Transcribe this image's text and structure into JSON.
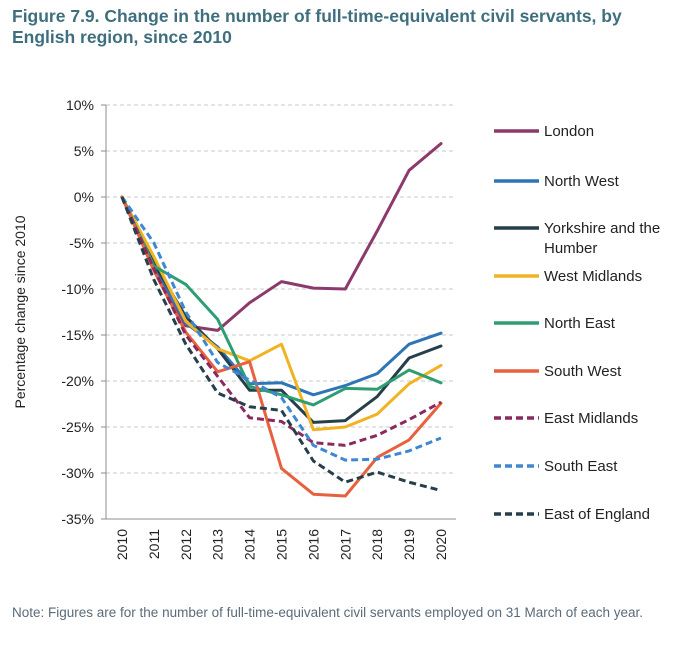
{
  "figure": {
    "title": "Figure 7.9. Change in the number of full-time-equivalent civil servants, by English region, since 2010",
    "note": "Note: Figures are for the number of full-time-equivalent civil servants employed on 31 March of each year."
  },
  "chart_data": {
    "type": "line",
    "title": "",
    "xlabel": "",
    "ylabel": "Percentage change since 2010",
    "x": [
      "2010",
      "2011",
      "2012",
      "2013",
      "2014",
      "2015",
      "2016",
      "2017",
      "2018",
      "2019",
      "2020"
    ],
    "ylim": [
      -35,
      10
    ],
    "yticks": [
      10,
      5,
      0,
      -5,
      -10,
      -15,
      -20,
      -25,
      -30,
      -35
    ],
    "ytick_labels": [
      "10%",
      "5%",
      "0%",
      "-5%",
      "-10%",
      "-15%",
      "-20%",
      "-25%",
      "-30%",
      "-35%"
    ],
    "grid": "horizontal dashed",
    "legend_position": "right",
    "series": [
      {
        "name": "London",
        "name_lines": [
          "London"
        ],
        "color": "#8b3a6b",
        "dashed": false,
        "values": [
          0,
          -7.5,
          -14.0,
          -14.5,
          -11.5,
          -9.2,
          -9.9,
          -10.0,
          -3.7,
          2.9,
          5.8
        ]
      },
      {
        "name": "North West",
        "name_lines": [
          "North West"
        ],
        "color": "#2e75b6",
        "dashed": false,
        "values": [
          0,
          -7.5,
          -13.7,
          -16.3,
          -20.3,
          -20.2,
          -21.5,
          -20.5,
          -19.2,
          -16.0,
          -14.8
        ]
      },
      {
        "name": "Yorkshire and the Humber",
        "name_lines": [
          "Yorkshire and the",
          "Humber"
        ],
        "color": "#263f4a",
        "dashed": false,
        "values": [
          0,
          -7.2,
          -13.0,
          -16.5,
          -21.0,
          -21.0,
          -24.5,
          -24.3,
          -21.7,
          -17.5,
          -16.2
        ]
      },
      {
        "name": "West Midlands",
        "name_lines": [
          "West Midlands"
        ],
        "color": "#f0b323",
        "dashed": false,
        "values": [
          0,
          -6.5,
          -13.5,
          -16.5,
          -17.8,
          -16.0,
          -25.3,
          -25.0,
          -23.6,
          -20.3,
          -18.3
        ]
      },
      {
        "name": "North East",
        "name_lines": [
          "North East"
        ],
        "color": "#2e9e72",
        "dashed": false,
        "values": [
          0,
          -7.5,
          -9.5,
          -13.3,
          -20.6,
          -21.5,
          -22.6,
          -20.8,
          -20.9,
          -18.8,
          -20.2
        ]
      },
      {
        "name": "South West",
        "name_lines": [
          "South West"
        ],
        "color": "#e8613f",
        "dashed": false,
        "values": [
          0,
          -8.0,
          -14.7,
          -19.0,
          -17.9,
          -29.5,
          -32.3,
          -32.5,
          -28.3,
          -26.4,
          -22.4
        ]
      },
      {
        "name": "East Midlands",
        "name_lines": [
          "East Midlands"
        ],
        "color": "#8b2a5e",
        "dashed": true,
        "values": [
          0,
          -7.8,
          -15.0,
          -19.5,
          -24.0,
          -24.4,
          -26.7,
          -27.0,
          -25.9,
          -24.2,
          -22.3
        ]
      },
      {
        "name": "South East",
        "name_lines": [
          "South East"
        ],
        "color": "#3f88d0",
        "dashed": true,
        "values": [
          0,
          -5.0,
          -12.5,
          -18.0,
          -19.9,
          -21.8,
          -27.0,
          -28.6,
          -28.5,
          -27.6,
          -26.2
        ]
      },
      {
        "name": "East of England",
        "name_lines": [
          "East of England"
        ],
        "color": "#263f4a",
        "dashed": true,
        "values": [
          0,
          -9.0,
          -16.0,
          -21.3,
          -22.8,
          -23.2,
          -28.7,
          -31.0,
          -29.9,
          -31.0,
          -31.9
        ]
      }
    ]
  }
}
